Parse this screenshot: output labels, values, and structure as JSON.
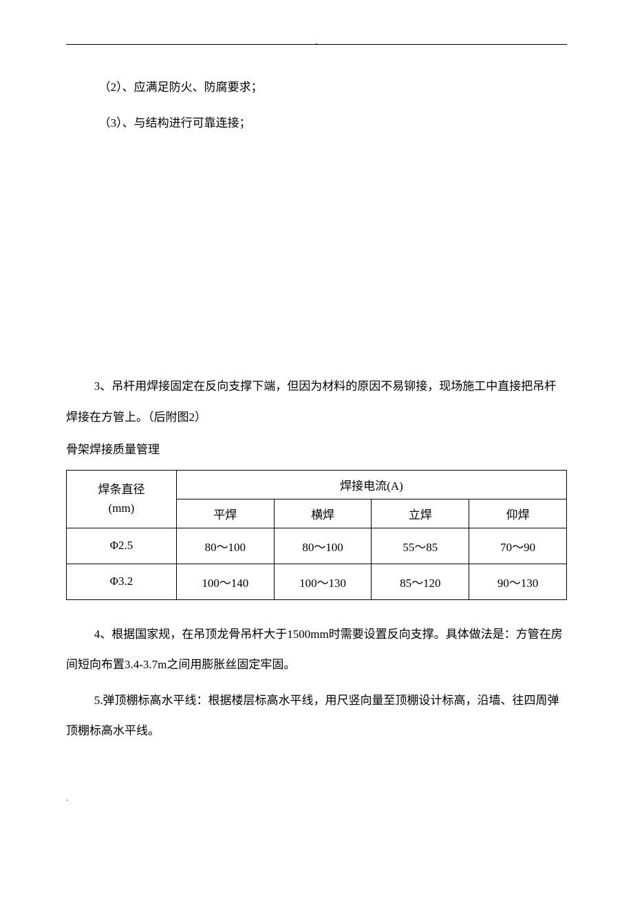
{
  "header": {
    "dot": "."
  },
  "paragraphs": {
    "p1": "（2）、应满足防火、防腐要求；",
    "p2": "（3）、与结构进行可靠连接；",
    "p3": "3、吊杆用焊接固定在反向支撑下端，但因为材料的原因不易铆接，现场施工中直接把吊杆焊接在方管上。（后附图2）",
    "section_title": "骨架焊接质量管理",
    "p4": "4、根据国家规，在吊顶龙骨吊杆大于1500mm时需要设置反向支撑。具体做法是：方管在房间短向布置3.4-3.7m之间用膨胀丝固定牢固。",
    "p5": "5.弹顶棚标高水平线：根据楼层标高水平线，用尺竖向量至顶棚设计标高，沿墙、往四周弹顶棚标高水平线。"
  },
  "table": {
    "col_header_main": "焊条直径",
    "col_header_sub": "(mm)",
    "current_header": "焊接电流(A)",
    "columns": [
      "平焊",
      "横焊",
      "立焊",
      "仰焊"
    ],
    "rows": [
      {
        "diameter": "Φ2.5",
        "values": [
          "80～100",
          "80～100",
          "55～85",
          "70～90"
        ]
      },
      {
        "diameter": "Φ3.2",
        "values": [
          "100～140",
          "100～130",
          "85～120",
          "90～130"
        ]
      }
    ]
  },
  "footer": {
    "dot": "."
  }
}
